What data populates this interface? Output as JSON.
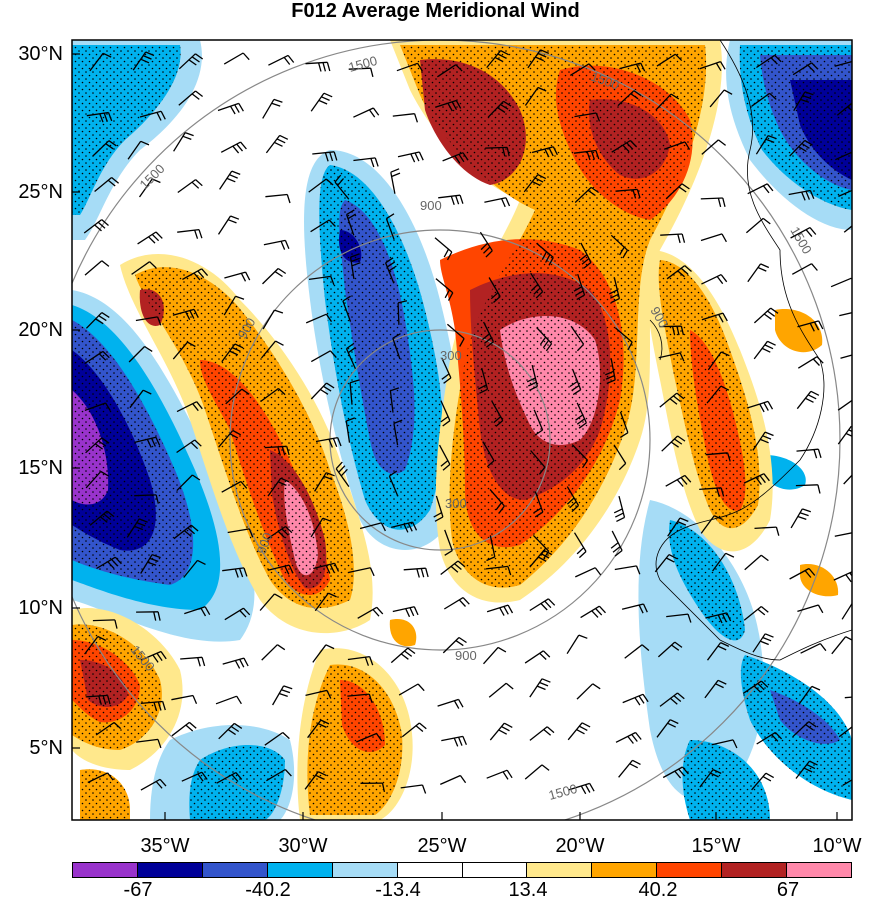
{
  "title": "F012 Average Meridional Wind",
  "lat_labels": [
    "30°N",
    "25°N",
    "20°N",
    "15°N",
    "10°N",
    "5°N"
  ],
  "lon_labels": [
    "35°W",
    "30°W",
    "25°W",
    "20°W",
    "15°W",
    "10°W"
  ],
  "contour_labels": [
    "1500",
    "1500",
    "1500",
    "1500",
    "1500",
    "1500",
    "900",
    "900",
    "900",
    "900",
    "900",
    "300",
    "300"
  ],
  "colorbar": {
    "colors": [
      "#9933cc",
      "#000099",
      "#3355cc",
      "#00b2ee",
      "#a6dcf6",
      "#ffffff",
      "#ffffff",
      "#ffe88c",
      "#ffa500",
      "#ff4500",
      "#b22222",
      "#ff88aa"
    ],
    "labels": [
      "-67",
      "-40.2",
      "-13.4",
      "13.4",
      "40.2",
      "67"
    ]
  },
  "colors": {
    "strong_negative": "#9933cc",
    "negative_dark": "#000099",
    "negative_mid": "#3355cc",
    "negative_light": "#00b2ee",
    "negative_pale": "#a6dcf6",
    "positive_pale": "#ffe88c",
    "positive_light": "#ffa500",
    "positive_mid": "#ff4500",
    "positive_dark": "#b22222",
    "strong_positive": "#ff88aa"
  }
}
